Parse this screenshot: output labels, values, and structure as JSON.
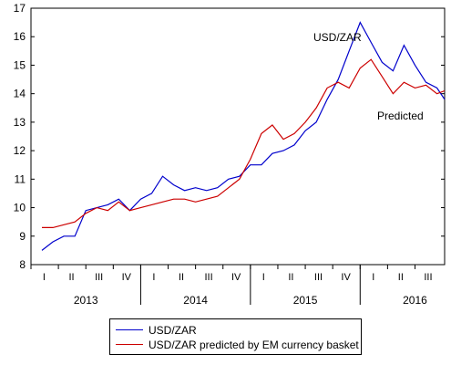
{
  "chart_data": {
    "type": "line",
    "ylim": [
      8,
      17
    ],
    "yticks": [
      8,
      9,
      10,
      11,
      12,
      13,
      14,
      15,
      16,
      17
    ],
    "quarter_labels": [
      "I",
      "II",
      "III",
      "IV",
      "I",
      "II",
      "III",
      "IV",
      "I",
      "II",
      "III",
      "IV",
      "I",
      "II",
      "III"
    ],
    "year_labels": [
      "2013",
      "2014",
      "2015",
      "2016"
    ],
    "annotations": [
      {
        "text": "USD/ZAR",
        "series": 0
      },
      {
        "text": "Predicted",
        "series": 1
      }
    ],
    "legend": [
      "USD/ZAR",
      "USD/ZAR predicted by EM currency basket"
    ],
    "x": [
      2013.0,
      2013.1,
      2013.2,
      2013.3,
      2013.4,
      2013.5,
      2013.6,
      2013.7,
      2013.8,
      2013.9,
      2014.0,
      2014.1,
      2014.2,
      2014.3,
      2014.4,
      2014.5,
      2014.6,
      2014.7,
      2014.8,
      2014.9,
      2015.0,
      2015.1,
      2015.2,
      2015.3,
      2015.4,
      2015.5,
      2015.6,
      2015.7,
      2015.8,
      2015.9,
      2016.0,
      2016.1,
      2016.2,
      2016.3,
      2016.4,
      2016.5,
      2016.6,
      2016.67
    ],
    "series": [
      {
        "name": "USD/ZAR",
        "color": "#0000cc",
        "values": [
          8.5,
          8.8,
          9.0,
          9.0,
          9.9,
          10.0,
          10.1,
          10.3,
          9.9,
          10.3,
          10.5,
          11.1,
          10.8,
          10.6,
          10.7,
          10.6,
          10.7,
          11.0,
          11.1,
          11.5,
          11.5,
          11.9,
          12.0,
          12.2,
          12.7,
          13.0,
          13.8,
          14.5,
          15.5,
          16.5,
          15.8,
          15.1,
          14.8,
          15.7,
          15.0,
          14.4,
          14.2,
          13.8
        ]
      },
      {
        "name": "USD/ZAR predicted by EM currency basket",
        "color": "#cc0000",
        "values": [
          9.3,
          9.3,
          9.4,
          9.5,
          9.8,
          10.0,
          9.9,
          10.2,
          9.9,
          10.0,
          10.1,
          10.2,
          10.3,
          10.3,
          10.2,
          10.3,
          10.4,
          10.7,
          11.0,
          11.7,
          12.6,
          12.9,
          12.4,
          12.6,
          13.0,
          13.5,
          14.2,
          14.4,
          14.2,
          14.9,
          15.2,
          14.6,
          14.0,
          14.4,
          14.2,
          14.3,
          14.0,
          14.1
        ]
      }
    ]
  }
}
